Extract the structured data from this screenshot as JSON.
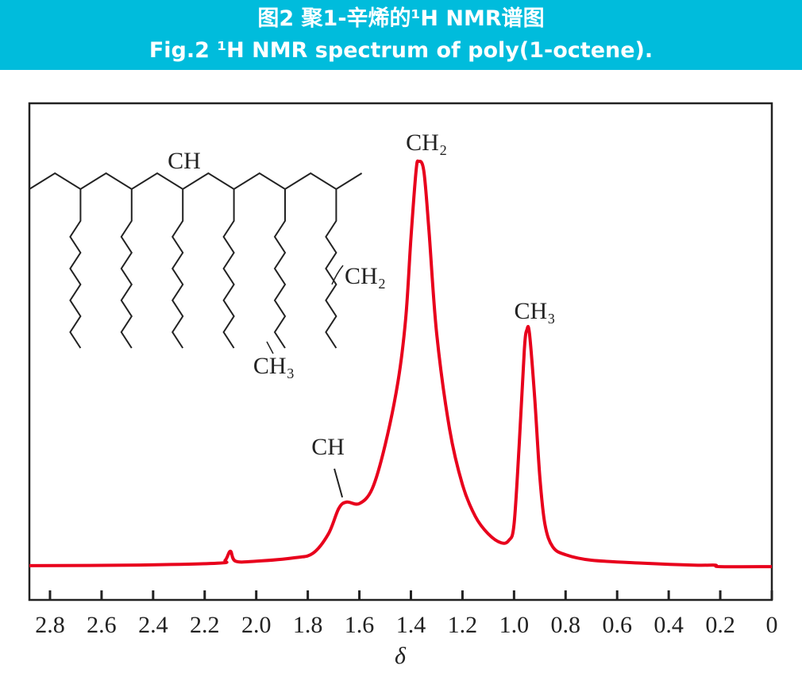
{
  "chart_data": {
    "type": "line",
    "title": "图2 聚1-辛烯的¹H NMR谱图",
    "subtitle": "Fig.2 ¹H NMR spectrum of poly(1-octene).",
    "x_label": "δ",
    "xlim": [
      2.88,
      0
    ],
    "xticks": [
      2.8,
      2.6,
      2.4,
      2.2,
      {
        "value": 2,
        "label": "2.0"
      },
      1.8,
      1.6,
      1.4,
      1.2,
      {
        "value": 1,
        "label": "1.0"
      },
      0.8,
      0.6,
      0.4,
      0.2,
      0
    ],
    "ylim": [
      0,
      100
    ],
    "series": [
      {
        "color": "#e8001c",
        "x": [
          2.88,
          2.5,
          2.15,
          2.12,
          2.1,
          2.08,
          2.0,
          1.85,
          1.78,
          1.72,
          1.68,
          1.65,
          1.6,
          1.55,
          1.5,
          1.45,
          1.42,
          1.4,
          1.38,
          1.37,
          1.35,
          1.33,
          1.3,
          1.25,
          1.2,
          1.15,
          1.1,
          1.05,
          1.02,
          1.0,
          0.98,
          0.96,
          0.95,
          0.94,
          0.92,
          0.9,
          0.88,
          0.85,
          0.8,
          0.7,
          0.5,
          0.3,
          0.22,
          0.2,
          0
        ],
        "values": [
          6.9,
          7.0,
          7.4,
          8.0,
          9.8,
          7.8,
          7.8,
          8.5,
          9.4,
          13.3,
          18.4,
          19.7,
          19.4,
          22.4,
          31.2,
          44.0,
          56.8,
          72.8,
          86.4,
          88.3,
          86.4,
          74.4,
          53.6,
          34.4,
          23.2,
          16.8,
          13.3,
          11.5,
          12.0,
          15.2,
          31.2,
          50.4,
          54.4,
          53.6,
          40.8,
          24.8,
          15.2,
          10.7,
          9.1,
          8.0,
          7.4,
          7.0,
          7.0,
          6.7,
          6.7
        ]
      }
    ],
    "annotations": [
      {
        "text": "CH₂",
        "x": 1.37,
        "y": 88.3
      },
      {
        "text": "CH₃",
        "x": 0.95,
        "y": 54.4
      },
      {
        "text": "CH",
        "x": 1.66,
        "y": 19.7
      }
    ],
    "inset_labels": [
      "CH",
      "CH₂",
      "CH₃"
    ]
  }
}
